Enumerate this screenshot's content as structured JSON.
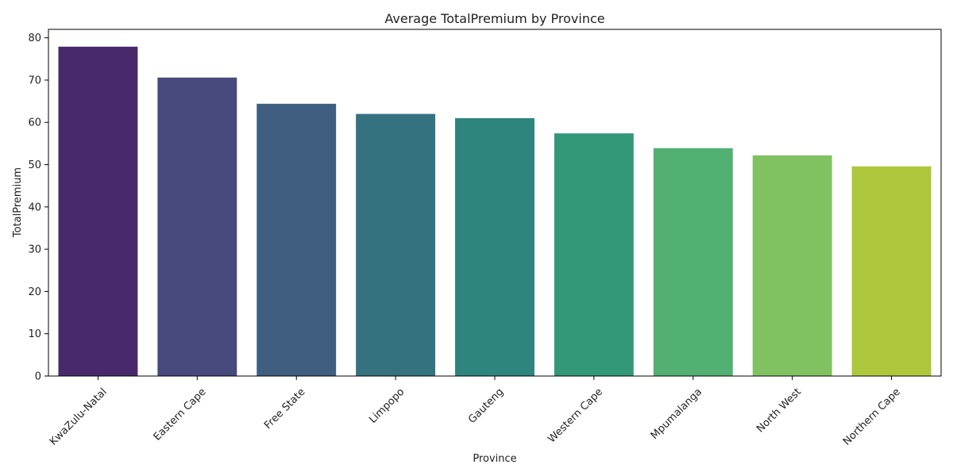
{
  "chart_data": {
    "type": "bar",
    "title": "Average TotalPremium by Province",
    "xlabel": "Province",
    "ylabel": "TotalPremium",
    "categories": [
      "KwaZulu-Natal",
      "Eastern Cape",
      "Free State",
      "Limpopo",
      "Gauteng",
      "Western Cape",
      "Mpumalanga",
      "North West",
      "Northern Cape"
    ],
    "values": [
      77.9,
      70.6,
      64.4,
      62.0,
      61.0,
      57.4,
      53.9,
      52.2,
      49.6
    ],
    "colors": [
      "#482a6b",
      "#48497c",
      "#3f5e80",
      "#357280",
      "#2e857d",
      "#33987a",
      "#52b073",
      "#80c262",
      "#adc73c"
    ],
    "ylim": [
      0,
      82
    ],
    "yticks": [
      0,
      10,
      20,
      30,
      40,
      50,
      60,
      70,
      80
    ],
    "legend": "none",
    "grid": false
  }
}
